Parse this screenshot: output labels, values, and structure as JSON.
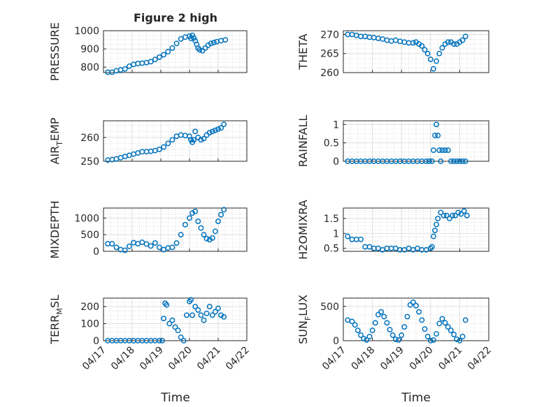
{
  "figure": {
    "title": "Figure 2 high",
    "xlabel": "Time",
    "x_ticks": [
      "04/17",
      "04/18",
      "04/19",
      "04/20",
      "04/21",
      "04/22"
    ],
    "marker_color": "#0072BD"
  },
  "chart_data": [
    {
      "type": "scatter",
      "ylabel_main": "PRESSURE",
      "ylabel_sub": "",
      "ylim": [
        770,
        1000
      ],
      "yticks": [
        800,
        900,
        1000
      ],
      "ytick_labels": [
        "800",
        "900",
        "1000"
      ],
      "xlim": [
        0,
        5
      ],
      "grid": true,
      "x": [
        0.15,
        0.3,
        0.45,
        0.6,
        0.75,
        0.9,
        1.05,
        1.2,
        1.35,
        1.5,
        1.65,
        1.8,
        1.95,
        2.1,
        2.25,
        2.4,
        2.55,
        2.7,
        2.85,
        3.0,
        3.05,
        3.1,
        3.15,
        3.2,
        3.25,
        3.3,
        3.35,
        3.45,
        3.55,
        3.65,
        3.75,
        3.85,
        3.95,
        4.1,
        4.25
      ],
      "y": [
        772,
        772,
        780,
        785,
        790,
        805,
        815,
        820,
        822,
        825,
        830,
        842,
        855,
        868,
        885,
        905,
        930,
        955,
        965,
        970,
        958,
        975,
        960,
        945,
        925,
        905,
        895,
        890,
        905,
        920,
        930,
        935,
        940,
        945,
        950
      ]
    },
    {
      "type": "scatter",
      "ylabel_main": "THETA",
      "ylabel_sub": "",
      "ylim": [
        260,
        271
      ],
      "yticks": [
        260,
        265,
        270
      ],
      "ytick_labels": [
        "260",
        "265",
        "270"
      ],
      "xlim": [
        0,
        5
      ],
      "grid": true,
      "x": [
        0.15,
        0.3,
        0.45,
        0.6,
        0.75,
        0.9,
        1.05,
        1.2,
        1.35,
        1.5,
        1.65,
        1.8,
        1.95,
        2.1,
        2.25,
        2.4,
        2.5,
        2.6,
        2.7,
        2.8,
        2.9,
        3.0,
        3.1,
        3.2,
        3.3,
        3.4,
        3.5,
        3.6,
        3.7,
        3.8,
        3.9,
        4.0,
        4.1,
        4.2
      ],
      "y": [
        270,
        270,
        269.8,
        269.5,
        269.5,
        269.3,
        269.2,
        269,
        268.8,
        268.5,
        268.3,
        268.5,
        268.2,
        268,
        267.8,
        267.8,
        268,
        267.5,
        267,
        266,
        265,
        263.5,
        261,
        263,
        265,
        266.5,
        267.5,
        268,
        268,
        267.5,
        267.5,
        268,
        268.5,
        269.5
      ]
    },
    {
      "type": "scatter",
      "ylabel_main": "AIR",
      "ylabel_sub": "T",
      "ylabel_tail": "EMP",
      "ylim": [
        250,
        267
      ],
      "yticks": [
        250,
        260
      ],
      "ytick_labels": [
        "250",
        "260"
      ],
      "xlim": [
        0,
        5
      ],
      "grid": true,
      "x": [
        0.15,
        0.3,
        0.45,
        0.6,
        0.75,
        0.9,
        1.05,
        1.2,
        1.35,
        1.5,
        1.65,
        1.8,
        1.95,
        2.1,
        2.25,
        2.4,
        2.55,
        2.7,
        2.85,
        3.0,
        3.05,
        3.1,
        3.15,
        3.2,
        3.3,
        3.4,
        3.5,
        3.6,
        3.7,
        3.8,
        3.9,
        4.0,
        4.1,
        4.2
      ],
      "y": [
        250.5,
        250.7,
        251,
        251.5,
        252,
        252.5,
        253,
        253.5,
        254,
        254,
        254.2,
        254.5,
        255,
        256,
        257.5,
        259,
        260.5,
        261,
        260.8,
        260.5,
        259,
        258,
        259,
        262.5,
        260,
        259,
        259.5,
        261,
        262,
        262.5,
        263,
        263.5,
        264,
        265.5
      ]
    },
    {
      "type": "scatter",
      "ylabel_main": "RAINFALL",
      "ylabel_sub": "",
      "ylim": [
        0,
        1.1
      ],
      "yticks": [
        0,
        0.5,
        1
      ],
      "ytick_labels": [
        "0",
        "0.5",
        "1"
      ],
      "xlim": [
        0,
        5
      ],
      "grid": true,
      "x": [
        0.15,
        0.3,
        0.45,
        0.6,
        0.75,
        0.9,
        1.05,
        1.2,
        1.35,
        1.5,
        1.65,
        1.8,
        1.95,
        2.1,
        2.25,
        2.4,
        2.55,
        2.7,
        2.85,
        2.95,
        3.05,
        3.1,
        3.15,
        3.2,
        3.25,
        3.3,
        3.35,
        3.4,
        3.5,
        3.6,
        3.7,
        3.8,
        3.9,
        4.0,
        4.1,
        4.2
      ],
      "y": [
        0,
        0,
        0,
        0,
        0,
        0,
        0,
        0,
        0,
        0,
        0,
        0,
        0,
        0,
        0,
        0,
        0,
        0,
        0,
        0,
        0,
        0.3,
        0.7,
        1.0,
        0.7,
        0.3,
        0,
        0.3,
        0.3,
        0.3,
        0,
        0,
        0,
        0,
        0,
        0
      ]
    },
    {
      "type": "scatter",
      "ylabel_main": "MIXDEPTH",
      "ylabel_sub": "",
      "ylim": [
        0,
        1300
      ],
      "yticks": [
        0,
        500,
        1000
      ],
      "ytick_labels": [
        "0",
        "500",
        "1000"
      ],
      "xlim": [
        0,
        5
      ],
      "grid": true,
      "x": [
        0.15,
        0.3,
        0.45,
        0.6,
        0.75,
        0.9,
        1.05,
        1.2,
        1.35,
        1.5,
        1.65,
        1.8,
        1.95,
        2.1,
        2.25,
        2.4,
        2.55,
        2.7,
        2.85,
        3.0,
        3.1,
        3.2,
        3.3,
        3.4,
        3.5,
        3.6,
        3.7,
        3.8,
        3.9,
        4.0,
        4.1,
        4.2
      ],
      "y": [
        230,
        230,
        120,
        50,
        30,
        150,
        260,
        230,
        270,
        220,
        160,
        250,
        120,
        50,
        100,
        120,
        250,
        500,
        800,
        1000,
        1150,
        1200,
        900,
        700,
        500,
        380,
        350,
        400,
        600,
        900,
        1100,
        1250
      ]
    },
    {
      "type": "scatter",
      "ylabel_main": "H2OMIXRA",
      "ylabel_sub": "",
      "ylim": [
        0.4,
        1.85
      ],
      "yticks": [
        0.5,
        1,
        1.5
      ],
      "ytick_labels": [
        "0.5",
        "1",
        "1.5"
      ],
      "xlim": [
        0,
        5
      ],
      "grid": true,
      "x": [
        0.15,
        0.3,
        0.45,
        0.6,
        0.75,
        0.9,
        1.05,
        1.2,
        1.35,
        1.5,
        1.65,
        1.8,
        1.95,
        2.1,
        2.25,
        2.4,
        2.55,
        2.7,
        2.85,
        3.0,
        3.05,
        3.1,
        3.15,
        3.2,
        3.25,
        3.35,
        3.45,
        3.55,
        3.65,
        3.75,
        3.85,
        3.95,
        4.05,
        4.15,
        4.25
      ],
      "y": [
        0.9,
        0.8,
        0.8,
        0.8,
        0.55,
        0.55,
        0.5,
        0.5,
        0.45,
        0.5,
        0.5,
        0.5,
        0.45,
        0.45,
        0.5,
        0.45,
        0.5,
        0.45,
        0.45,
        0.5,
        0.55,
        0.9,
        1.1,
        1.3,
        1.5,
        1.7,
        1.6,
        1.6,
        1.5,
        1.6,
        1.6,
        1.7,
        1.65,
        1.75,
        1.6
      ]
    },
    {
      "type": "scatter",
      "ylabel_main": "TERR",
      "ylabel_sub": "M",
      "ylabel_tail": "SL",
      "ylim": [
        0,
        250
      ],
      "yticks": [
        0,
        100,
        200
      ],
      "ytick_labels": [
        "0",
        "100",
        "200"
      ],
      "xlim": [
        0,
        5
      ],
      "grid": true,
      "x": [
        0.15,
        0.3,
        0.45,
        0.6,
        0.75,
        0.9,
        1.05,
        1.2,
        1.35,
        1.5,
        1.65,
        1.8,
        1.95,
        2.05,
        2.1,
        2.15,
        2.2,
        2.3,
        2.4,
        2.5,
        2.6,
        2.7,
        2.8,
        2.9,
        3.0,
        3.05,
        3.1,
        3.2,
        3.3,
        3.4,
        3.5,
        3.6,
        3.7,
        3.8,
        3.9,
        4.0,
        4.1,
        4.2
      ],
      "y": [
        0,
        0,
        0,
        0,
        0,
        0,
        0,
        0,
        0,
        0,
        0,
        0,
        0,
        0,
        130,
        220,
        210,
        100,
        120,
        80,
        60,
        20,
        0,
        150,
        230,
        240,
        150,
        200,
        180,
        150,
        120,
        160,
        200,
        150,
        170,
        190,
        150,
        140
      ]
    },
    {
      "type": "scatter",
      "ylabel_main": "SUN",
      "ylabel_sub": "F",
      "ylabel_tail": "LUX",
      "ylim": [
        0,
        620
      ],
      "yticks": [
        0,
        500
      ],
      "ytick_labels": [
        "0",
        "500"
      ],
      "xlim": [
        0,
        5
      ],
      "grid": true,
      "x": [
        0.15,
        0.3,
        0.4,
        0.5,
        0.6,
        0.7,
        0.8,
        0.9,
        1.0,
        1.1,
        1.2,
        1.3,
        1.4,
        1.5,
        1.6,
        1.7,
        1.8,
        1.9,
        2.0,
        2.1,
        2.2,
        2.3,
        2.4,
        2.5,
        2.6,
        2.7,
        2.8,
        2.9,
        3.0,
        3.1,
        3.2,
        3.3,
        3.4,
        3.5,
        3.6,
        3.7,
        3.8,
        3.9,
        4.0,
        4.1,
        4.2
      ],
      "y": [
        300,
        280,
        230,
        150,
        80,
        30,
        10,
        60,
        150,
        260,
        380,
        420,
        350,
        260,
        160,
        80,
        20,
        10,
        80,
        200,
        350,
        520,
        560,
        510,
        420,
        300,
        170,
        60,
        0,
        10,
        100,
        250,
        320,
        260,
        200,
        150,
        90,
        20,
        0,
        60,
        300
      ]
    }
  ]
}
